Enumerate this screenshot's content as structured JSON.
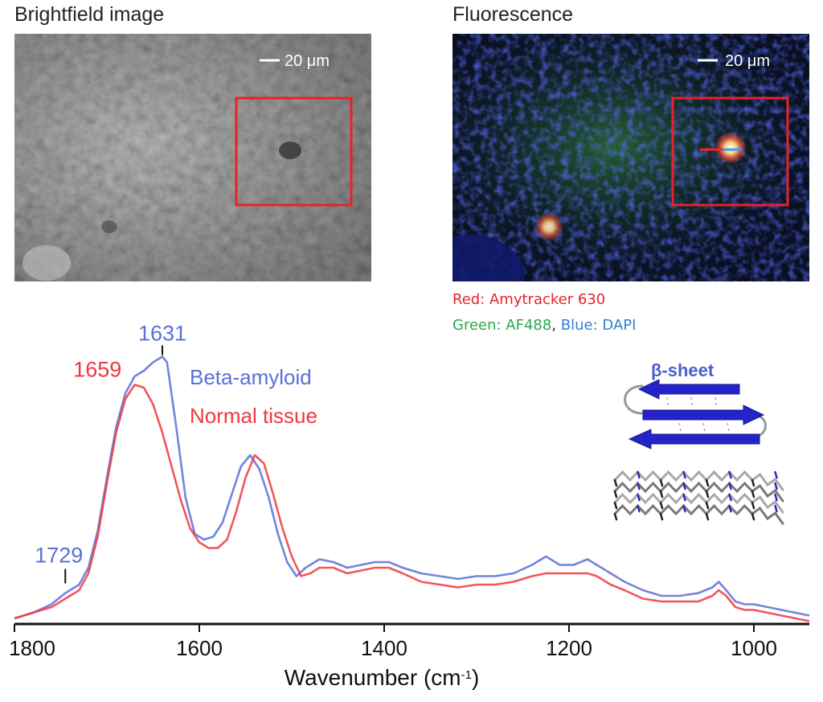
{
  "panels": {
    "brightfield": {
      "title": "Brightfield image",
      "scale_bar": "20 μm"
    },
    "fluorescence": {
      "title": "Fluorescence",
      "scale_bar": "20 μm"
    }
  },
  "stain_legend": {
    "red": "Red: Amytracker 630",
    "green": "Green: AF488",
    "separator": ", ",
    "blue": "Blue: DAPI"
  },
  "structure_label": "β-sheet",
  "colors": {
    "beta": "#5b6fd6",
    "normal": "#f0383f",
    "red_box": "#e8222a",
    "legend_red": "#e8222a",
    "legend_green": "#2aa84a",
    "legend_blue": "#2f7fd0",
    "sheet_blue": "#2323c8"
  },
  "chart_data": {
    "type": "line",
    "xlabel": "Wavenumber (cm-1)",
    "xlabel_main": "Wavenumber (cm",
    "xlabel_sup": "-1",
    "xlabel_end": ")",
    "xlim": [
      1800,
      940
    ],
    "ylim": [
      0,
      1.0
    ],
    "ticks": [
      1800,
      1600,
      1400,
      1200,
      1000
    ],
    "legend": [
      "Beta-amyloid",
      "Normal tissue"
    ],
    "annotations": [
      {
        "label": "1631",
        "x": 1640,
        "series": "Beta-amyloid"
      },
      {
        "label": "1659",
        "x": 1665,
        "series": "Normal tissue"
      },
      {
        "label": "1729",
        "x": 1745,
        "series": "Beta-amyloid"
      }
    ],
    "series": [
      {
        "name": "Beta-amyloid",
        "x": [
          1800,
          1780,
          1760,
          1745,
          1730,
          1720,
          1710,
          1700,
          1690,
          1680,
          1670,
          1660,
          1650,
          1640,
          1635,
          1625,
          1615,
          1605,
          1595,
          1585,
          1575,
          1565,
          1555,
          1545,
          1535,
          1525,
          1515,
          1505,
          1495,
          1485,
          1470,
          1455,
          1440,
          1425,
          1410,
          1395,
          1380,
          1360,
          1340,
          1320,
          1300,
          1280,
          1260,
          1240,
          1225,
          1210,
          1195,
          1180,
          1170,
          1155,
          1140,
          1120,
          1100,
          1080,
          1060,
          1045,
          1038,
          1030,
          1020,
          1010,
          1000,
          985,
          970,
          955,
          940
        ],
        "y": [
          0.02,
          0.04,
          0.07,
          0.11,
          0.14,
          0.2,
          0.33,
          0.52,
          0.7,
          0.82,
          0.88,
          0.9,
          0.93,
          0.95,
          0.93,
          0.7,
          0.45,
          0.32,
          0.3,
          0.31,
          0.36,
          0.46,
          0.56,
          0.6,
          0.55,
          0.45,
          0.32,
          0.22,
          0.17,
          0.2,
          0.23,
          0.22,
          0.2,
          0.21,
          0.22,
          0.22,
          0.2,
          0.18,
          0.17,
          0.16,
          0.17,
          0.17,
          0.18,
          0.21,
          0.24,
          0.21,
          0.21,
          0.23,
          0.21,
          0.18,
          0.15,
          0.12,
          0.1,
          0.1,
          0.11,
          0.13,
          0.15,
          0.12,
          0.08,
          0.07,
          0.07,
          0.06,
          0.05,
          0.04,
          0.03
        ]
      },
      {
        "name": "Normal tissue",
        "x": [
          1800,
          1780,
          1760,
          1745,
          1730,
          1720,
          1710,
          1700,
          1690,
          1680,
          1670,
          1660,
          1650,
          1640,
          1630,
          1620,
          1610,
          1600,
          1590,
          1580,
          1570,
          1560,
          1550,
          1540,
          1530,
          1520,
          1510,
          1500,
          1490,
          1480,
          1470,
          1455,
          1440,
          1425,
          1410,
          1395,
          1380,
          1360,
          1340,
          1320,
          1300,
          1280,
          1260,
          1240,
          1225,
          1210,
          1195,
          1180,
          1170,
          1155,
          1140,
          1120,
          1100,
          1080,
          1060,
          1045,
          1038,
          1030,
          1020,
          1010,
          1000,
          985,
          970,
          955,
          940
        ],
        "y": [
          0.02,
          0.04,
          0.06,
          0.09,
          0.12,
          0.18,
          0.31,
          0.5,
          0.68,
          0.8,
          0.85,
          0.84,
          0.78,
          0.68,
          0.56,
          0.44,
          0.34,
          0.29,
          0.27,
          0.27,
          0.3,
          0.4,
          0.52,
          0.6,
          0.57,
          0.46,
          0.34,
          0.24,
          0.17,
          0.18,
          0.2,
          0.2,
          0.18,
          0.19,
          0.2,
          0.2,
          0.18,
          0.15,
          0.14,
          0.13,
          0.14,
          0.14,
          0.15,
          0.17,
          0.18,
          0.18,
          0.18,
          0.18,
          0.17,
          0.14,
          0.12,
          0.09,
          0.08,
          0.08,
          0.08,
          0.1,
          0.12,
          0.1,
          0.06,
          0.05,
          0.05,
          0.04,
          0.03,
          0.02,
          0.01
        ]
      }
    ]
  }
}
